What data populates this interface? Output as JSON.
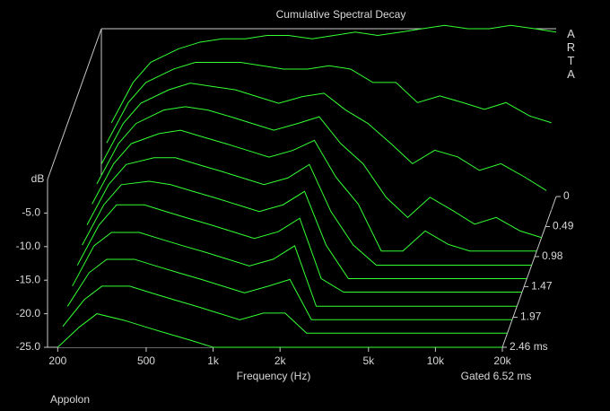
{
  "chart_data": {
    "type": "waterfall",
    "title": "Cumulative Spectral Decay",
    "x_label": "Frequency (Hz)",
    "y_label": "dB",
    "note": "Gated 6.52 ms",
    "brand": "ARTA",
    "footer": "Appolon",
    "color": "#33ff33",
    "log_x": true,
    "xlim": [
      180,
      20000
    ],
    "xticks": [
      200,
      500,
      {
        "value": 1000,
        "label": "1k"
      },
      {
        "value": 2000,
        "label": "2k"
      },
      {
        "value": 5000,
        "label": "5k"
      },
      {
        "value": 10000,
        "label": "10k"
      },
      {
        "value": 20000,
        "label": "20k"
      }
    ],
    "ylim": [
      -25,
      0
    ],
    "yticks": [
      {
        "value": -5,
        "label": "-5.0"
      },
      {
        "value": -10,
        "label": "-10.0"
      },
      {
        "value": -15,
        "label": "-15.0"
      },
      {
        "value": -20,
        "label": "-20.0"
      },
      {
        "value": -25,
        "label": "-25.0"
      }
    ],
    "zlim": [
      0,
      2.46
    ],
    "zticks": [
      0,
      0.49,
      0.98,
      1.47,
      1.97,
      {
        "value": 2.46,
        "label": "2.46 ms"
      }
    ],
    "x": [
      200,
      250,
      300,
      400,
      500,
      630,
      800,
      1000,
      1250,
      1600,
      2000,
      2500,
      3150,
      4000,
      5000,
      6300,
      8000,
      10000,
      12500,
      16000,
      20000
    ],
    "z": [
      0,
      0.22,
      0.45,
      0.67,
      0.89,
      1.12,
      1.34,
      1.56,
      1.79,
      2.01,
      2.23,
      2.46
    ],
    "values": [
      [
        -14,
        -8,
        -5,
        -3,
        -2,
        -1.5,
        -1.5,
        -1,
        -1,
        -1.5,
        -1,
        -0.5,
        -1,
        -0.5,
        0,
        0.5,
        0,
        0,
        0.5,
        0,
        -0.5
      ],
      [
        -15,
        -9,
        -6,
        -4,
        -3,
        -3,
        -3,
        -3.5,
        -4,
        -4,
        -3.5,
        -4,
        -6,
        -6,
        -9,
        -8,
        -9,
        -10,
        -9,
        -11,
        -12
      ],
      [
        -16,
        -10,
        -7,
        -5,
        -4,
        -4.5,
        -5,
        -6,
        -7,
        -6,
        -5.5,
        -8,
        -10,
        -13,
        -16,
        -14,
        -15,
        -17,
        -16,
        -18,
        -20
      ],
      [
        -17,
        -11,
        -8,
        -6,
        -5.5,
        -6,
        -7,
        -8,
        -9,
        -8,
        -7,
        -11,
        -14,
        -19,
        -22,
        -19,
        -21,
        -23,
        -22,
        -24,
        -25
      ],
      [
        -18,
        -12,
        -9,
        -7.5,
        -7,
        -8,
        -9,
        -10,
        -11,
        -10,
        -8.5,
        -14,
        -18,
        -25,
        -25,
        -22,
        -24,
        -25,
        -25,
        -25,
        -25
      ],
      [
        -19,
        -13,
        -10,
        -9,
        -9,
        -10,
        -11,
        -12,
        -13,
        -12,
        -10,
        -17,
        -22,
        -25,
        -25,
        -25,
        -25,
        -25,
        -25,
        -25,
        -25
      ],
      [
        -20,
        -14,
        -11,
        -10.5,
        -11,
        -12,
        -13,
        -14,
        -15,
        -14,
        -12,
        -20,
        -25,
        -25,
        -25,
        -25,
        -25,
        -25,
        -25,
        -25,
        -25
      ],
      [
        -21,
        -15,
        -12,
        -12,
        -13,
        -14,
        -15,
        -16,
        -17,
        -16,
        -14,
        -23,
        -25,
        -25,
        -25,
        -25,
        -25,
        -25,
        -25,
        -25,
        -25
      ],
      [
        -22,
        -16,
        -14,
        -14,
        -15,
        -16,
        -17,
        -18,
        -19,
        -18,
        -16,
        -25,
        -25,
        -25,
        -25,
        -25,
        -25,
        -25,
        -25,
        -25,
        -25
      ],
      [
        -23,
        -18,
        -16,
        -16,
        -17,
        -18,
        -19,
        -20,
        -21,
        -20,
        -19,
        -25,
        -25,
        -25,
        -25,
        -25,
        -25,
        -25,
        -25,
        -25,
        -25
      ],
      [
        -24,
        -20,
        -18,
        -18,
        -19,
        -20,
        -21,
        -22,
        -23,
        -22,
        -22,
        -25,
        -25,
        -25,
        -25,
        -25,
        -25,
        -25,
        -25,
        -25,
        -25
      ],
      [
        -25,
        -22,
        -20,
        -21,
        -22,
        -23,
        -24,
        -25,
        -25,
        -25,
        -25,
        -25,
        -25,
        -25,
        -25,
        -25,
        -25,
        -25,
        -25,
        -25,
        -25
      ]
    ]
  }
}
